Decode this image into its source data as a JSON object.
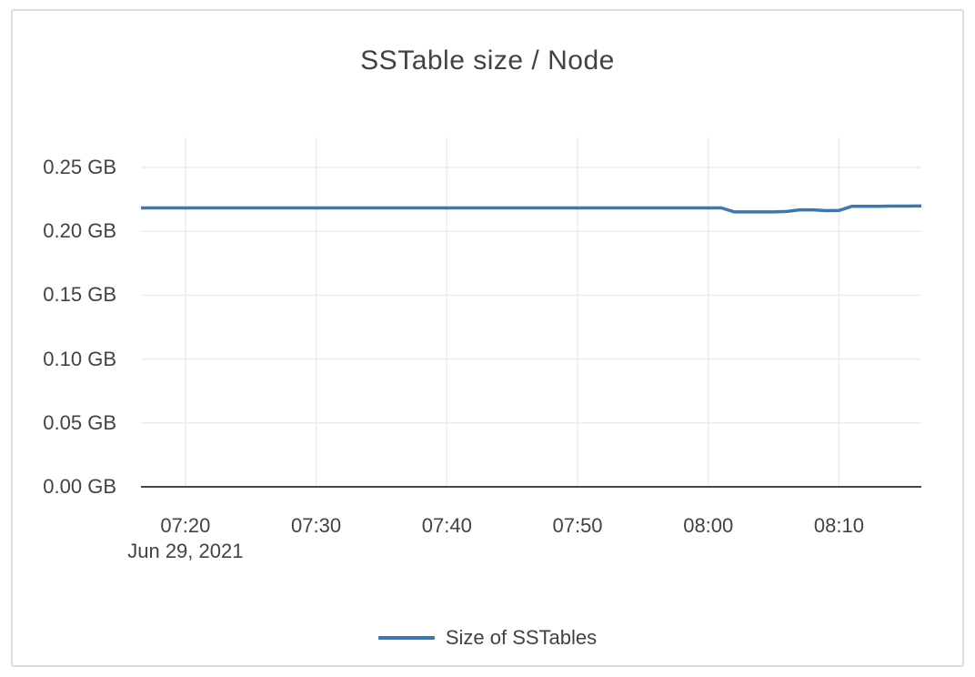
{
  "chart_data": {
    "type": "line",
    "title": "SSTable size / Node",
    "legend_position": "bottom-center",
    "grid": true,
    "colors": {
      "line": "#3e76ad",
      "grid": "#ececec",
      "axis": "#43474b",
      "text": "#3f4347",
      "card_border": "#dcdcdc"
    },
    "y_axis": {
      "unit": "GB",
      "range": [
        0,
        0.2735
      ],
      "ticks": [
        {
          "label": "0.00 GB",
          "value": 0.0
        },
        {
          "label": "0.05 GB",
          "value": 0.05
        },
        {
          "label": "0.10 GB",
          "value": 0.1
        },
        {
          "label": "0.15 GB",
          "value": 0.15
        },
        {
          "label": "0.20 GB",
          "value": 0.2
        },
        {
          "label": "0.25 GB",
          "value": 0.25
        }
      ]
    },
    "x_axis": {
      "date_label": "Jun 29, 2021",
      "range_minutes": [
        436.6,
        496.3
      ],
      "ticks": [
        "07:20",
        "07:30",
        "07:40",
        "07:50",
        "08:00",
        "08:10"
      ]
    },
    "series": [
      {
        "name": "Size of SSTables",
        "color": "#3e76ad",
        "points": [
          [
            "07:16",
            0.2183
          ],
          [
            "07:17",
            0.2183
          ],
          [
            "07:18",
            0.2183
          ],
          [
            "07:19",
            0.2183
          ],
          [
            "07:20",
            0.2183
          ],
          [
            "07:21",
            0.2183
          ],
          [
            "07:22",
            0.2183
          ],
          [
            "07:23",
            0.2183
          ],
          [
            "07:24",
            0.2183
          ],
          [
            "07:25",
            0.2183
          ],
          [
            "07:26",
            0.2183
          ],
          [
            "07:27",
            0.2183
          ],
          [
            "07:28",
            0.2183
          ],
          [
            "07:29",
            0.2183
          ],
          [
            "07:30",
            0.2183
          ],
          [
            "07:31",
            0.2183
          ],
          [
            "07:32",
            0.2183
          ],
          [
            "07:33",
            0.2183
          ],
          [
            "07:34",
            0.2183
          ],
          [
            "07:35",
            0.2183
          ],
          [
            "07:36",
            0.2183
          ],
          [
            "07:37",
            0.2183
          ],
          [
            "07:38",
            0.2183
          ],
          [
            "07:39",
            0.2183
          ],
          [
            "07:40",
            0.2183
          ],
          [
            "07:41",
            0.2183
          ],
          [
            "07:42",
            0.2183
          ],
          [
            "07:43",
            0.2183
          ],
          [
            "07:44",
            0.2183
          ],
          [
            "07:45",
            0.2183
          ],
          [
            "07:46",
            0.2183
          ],
          [
            "07:47",
            0.2183
          ],
          [
            "07:48",
            0.2183
          ],
          [
            "07:49",
            0.2183
          ],
          [
            "07:50",
            0.2183
          ],
          [
            "07:51",
            0.2183
          ],
          [
            "07:52",
            0.2183
          ],
          [
            "07:53",
            0.2183
          ],
          [
            "07:54",
            0.2183
          ],
          [
            "07:55",
            0.2183
          ],
          [
            "07:56",
            0.2183
          ],
          [
            "07:57",
            0.2183
          ],
          [
            "07:58",
            0.2183
          ],
          [
            "07:59",
            0.2183
          ],
          [
            "08:00",
            0.2183
          ],
          [
            "08:01",
            0.2183
          ],
          [
            "08:02",
            0.2152
          ],
          [
            "08:03",
            0.2152
          ],
          [
            "08:04",
            0.2152
          ],
          [
            "08:05",
            0.2152
          ],
          [
            "08:06",
            0.2155
          ],
          [
            "08:07",
            0.2168
          ],
          [
            "08:08",
            0.2168
          ],
          [
            "08:09",
            0.2162
          ],
          [
            "08:10",
            0.2163
          ],
          [
            "08:11",
            0.2196
          ],
          [
            "08:12",
            0.2196
          ],
          [
            "08:13",
            0.2196
          ],
          [
            "08:14",
            0.2197
          ],
          [
            "08:15",
            0.2197
          ],
          [
            "08:16",
            0.2198
          ],
          [
            "08:17",
            0.2199
          ]
        ]
      }
    ]
  }
}
